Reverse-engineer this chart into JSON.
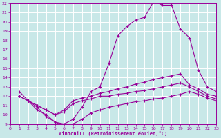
{
  "xlabel": "Windchill (Refroidissement éolien,°C)",
  "xlim": [
    0,
    23
  ],
  "ylim": [
    9,
    22
  ],
  "yticks": [
    9,
    10,
    11,
    12,
    13,
    14,
    15,
    16,
    17,
    18,
    19,
    20,
    21,
    22
  ],
  "xticks": [
    0,
    1,
    2,
    3,
    4,
    5,
    6,
    7,
    8,
    9,
    10,
    11,
    12,
    13,
    14,
    15,
    16,
    17,
    18,
    19,
    20,
    21,
    22,
    23
  ],
  "bg_color": "#c8e8e8",
  "line_color": "#990099",
  "grid_color": "#ffffff",
  "line1_x": [
    1,
    2,
    3,
    4,
    5,
    6,
    7,
    8,
    9,
    10,
    11,
    12,
    13,
    14,
    15,
    16,
    17,
    18,
    19,
    20,
    21,
    22,
    23
  ],
  "line1_y": [
    12.5,
    11.5,
    10.5,
    10.0,
    9.2,
    9.0,
    9.5,
    10.8,
    12.5,
    13.0,
    15.5,
    18.5,
    19.5,
    20.2,
    20.5,
    22.2,
    21.8,
    21.8,
    19.2,
    18.3,
    14.8,
    13.0,
    12.5
  ],
  "line2_x": [
    1,
    2,
    3,
    4,
    5,
    6,
    7,
    8,
    9,
    10,
    11,
    12,
    13,
    14,
    15,
    16,
    17,
    18,
    19,
    20,
    21,
    22,
    23
  ],
  "line2_y": [
    12.0,
    11.5,
    11.0,
    10.5,
    10.0,
    10.5,
    11.5,
    11.8,
    12.0,
    12.3,
    12.5,
    12.8,
    13.0,
    13.3,
    13.5,
    13.8,
    14.0,
    14.2,
    14.4,
    13.2,
    12.8,
    12.2,
    12.0
  ],
  "line3_x": [
    1,
    2,
    3,
    4,
    5,
    6,
    7,
    8,
    9,
    10,
    11,
    12,
    13,
    14,
    15,
    16,
    17,
    18,
    19,
    20,
    21,
    22,
    23
  ],
  "line3_y": [
    12.0,
    11.5,
    11.0,
    10.5,
    10.0,
    10.3,
    11.2,
    11.5,
    11.7,
    12.0,
    12.0,
    12.2,
    12.3,
    12.5,
    12.6,
    12.8,
    13.0,
    13.2,
    13.4,
    13.0,
    12.5,
    12.0,
    11.7
  ],
  "line4_x": [
    1,
    2,
    3,
    4,
    5,
    6,
    7,
    8,
    9,
    10,
    11,
    12,
    13,
    14,
    15,
    16,
    17,
    18,
    19,
    20,
    21,
    22,
    23
  ],
  "line4_y": [
    12.0,
    11.5,
    10.8,
    9.8,
    9.2,
    8.8,
    9.0,
    9.5,
    10.2,
    10.5,
    10.8,
    11.0,
    11.2,
    11.4,
    11.5,
    11.7,
    11.8,
    12.0,
    12.2,
    12.5,
    12.2,
    11.8,
    11.5
  ]
}
